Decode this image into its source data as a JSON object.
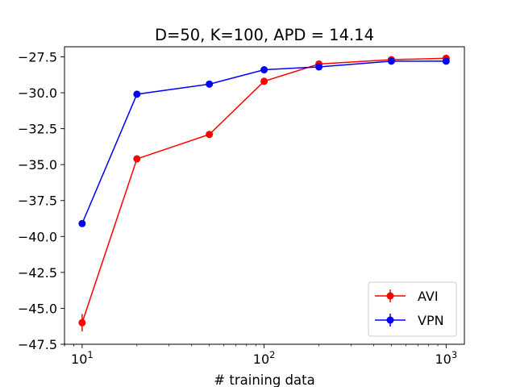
{
  "chart_data": {
    "type": "line",
    "title": "D=50, K=100, APD = 14.14",
    "xlabel": "# training data",
    "ylabel": "",
    "xscale": "log",
    "xlim": [
      8,
      1260
    ],
    "ylim": [
      -47.5,
      -26.8
    ],
    "x_ticks": [
      {
        "value": 10,
        "base": "10",
        "exp": "1"
      },
      {
        "value": 100,
        "base": "10",
        "exp": "2"
      },
      {
        "value": 1000,
        "base": "10",
        "exp": "3"
      }
    ],
    "y_ticks": [
      {
        "value": -27.5,
        "label": "−27.5"
      },
      {
        "value": -30.0,
        "label": "−30.0"
      },
      {
        "value": -32.5,
        "label": "−32.5"
      },
      {
        "value": -35.0,
        "label": "−35.0"
      },
      {
        "value": -37.5,
        "label": "−37.5"
      },
      {
        "value": -40.0,
        "label": "−40.0"
      },
      {
        "value": -42.5,
        "label": "−42.5"
      },
      {
        "value": -45.0,
        "label": "−45.0"
      },
      {
        "value": -47.5,
        "label": "−47.5"
      }
    ],
    "legend_position": "lower-right",
    "grid": false,
    "series": [
      {
        "name": "AVI",
        "color": "#ff0000",
        "points": [
          {
            "x": 10,
            "y": -46.0,
            "err": 0.6
          },
          {
            "x": 20,
            "y": -34.6,
            "err": 0.1
          },
          {
            "x": 50,
            "y": -32.9,
            "err": 0.1
          },
          {
            "x": 100,
            "y": -29.2,
            "err": 0.1
          },
          {
            "x": 200,
            "y": -28.0,
            "err": 0.1
          },
          {
            "x": 500,
            "y": -27.7,
            "err": 0.05
          },
          {
            "x": 1000,
            "y": -27.6,
            "err": 0.05
          }
        ]
      },
      {
        "name": "VPN",
        "color": "#0000ff",
        "points": [
          {
            "x": 10,
            "y": -39.1,
            "err": 0.1
          },
          {
            "x": 20,
            "y": -30.1,
            "err": 0.1
          },
          {
            "x": 50,
            "y": -29.4,
            "err": 0.1
          },
          {
            "x": 100,
            "y": -28.4,
            "err": 0.1
          },
          {
            "x": 200,
            "y": -28.2,
            "err": 0.05
          },
          {
            "x": 500,
            "y": -27.8,
            "err": 0.05
          },
          {
            "x": 1000,
            "y": -27.8,
            "err": 0.05
          }
        ]
      }
    ]
  }
}
